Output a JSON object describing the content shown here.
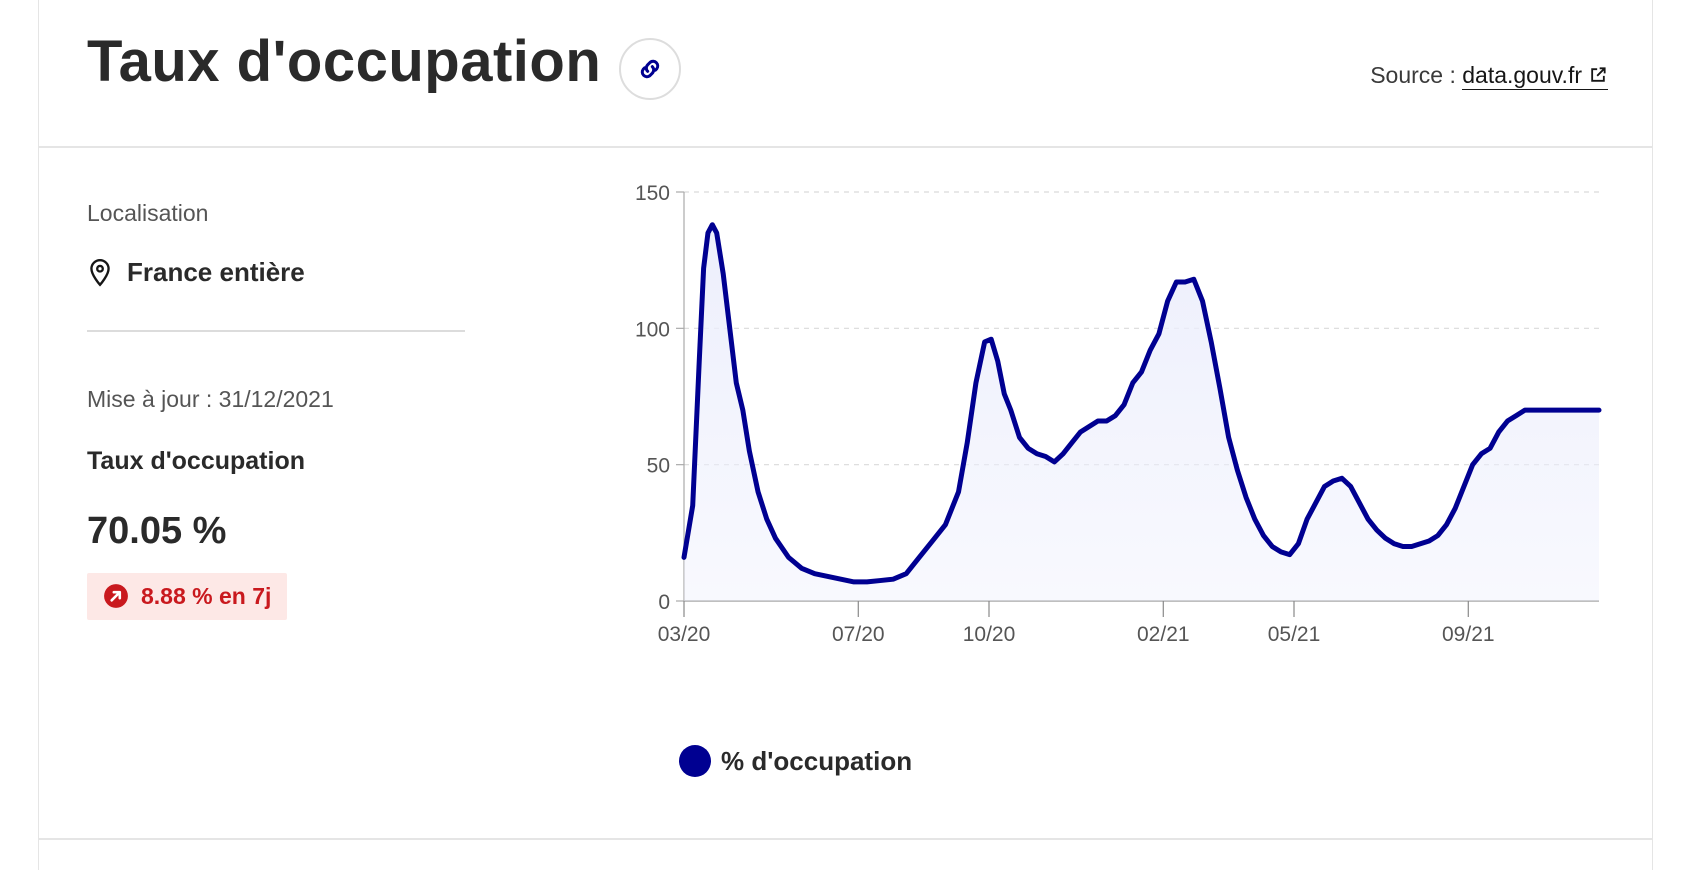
{
  "header": {
    "title": "Taux d'occupation",
    "source_prefix": "Source :",
    "source_link": "data.gouv.fr"
  },
  "sidebar": {
    "location_label": "Localisation",
    "location_value": "France entière",
    "update_text": "Mise à jour : 31/12/2021",
    "indicator_title": "Taux d'occupation",
    "indicator_value": "70.05 %",
    "trend_text": "8.88 % en 7j"
  },
  "colors": {
    "series": "#000091",
    "fill": "#eceefc",
    "trend": "#c9191e"
  },
  "chart_data": {
    "type": "area",
    "x_ticks": [
      "03/20",
      "07/20",
      "10/20",
      "02/21",
      "05/21",
      "09/21"
    ],
    "x_tick_values": [
      0,
      4,
      7,
      11,
      14,
      18
    ],
    "y_ticks": [
      0,
      50,
      100,
      150
    ],
    "ylim": [
      0,
      150
    ],
    "grid": true,
    "legend": "bottom",
    "series": [
      {
        "name": "% d'occupation",
        "x": [
          0,
          0.2,
          0.35,
          0.45,
          0.55,
          0.65,
          0.75,
          0.9,
          1.05,
          1.2,
          1.35,
          1.5,
          1.7,
          1.9,
          2.1,
          2.4,
          2.7,
          3.0,
          3.3,
          3.6,
          3.9,
          4.2,
          4.5,
          4.8,
          5.1,
          5.4,
          5.7,
          6.0,
          6.3,
          6.5,
          6.7,
          6.9,
          7.05,
          7.2,
          7.35,
          7.5,
          7.7,
          7.9,
          8.1,
          8.3,
          8.5,
          8.7,
          8.9,
          9.1,
          9.3,
          9.5,
          9.7,
          9.9,
          10.1,
          10.3,
          10.5,
          10.7,
          10.9,
          11.1,
          11.3,
          11.5,
          11.7,
          11.9,
          12.1,
          12.3,
          12.5,
          12.7,
          12.9,
          13.1,
          13.3,
          13.5,
          13.7,
          13.9,
          14.1,
          14.3,
          14.5,
          14.7,
          14.9,
          15.1,
          15.3,
          15.5,
          15.7,
          15.9,
          16.1,
          16.3,
          16.5,
          16.7,
          16.9,
          17.1,
          17.3,
          17.5,
          17.7,
          17.9,
          18.1,
          18.3,
          18.5,
          18.7,
          18.9,
          19.1,
          19.3,
          19.5,
          19.7,
          19.9,
          20.1,
          20.3,
          20.5,
          20.7,
          20.85,
          21.0
        ],
        "y": [
          16,
          35,
          88,
          122,
          135,
          138,
          135,
          120,
          100,
          80,
          70,
          55,
          40,
          30,
          23,
          16,
          12,
          10,
          9,
          8,
          7,
          7,
          7.5,
          8,
          10,
          16,
          22,
          28,
          40,
          58,
          80,
          95,
          96,
          88,
          76,
          70,
          60,
          56,
          54,
          53,
          51,
          54,
          58,
          62,
          64,
          66,
          66,
          68,
          72,
          80,
          84,
          92,
          98,
          110,
          117,
          117,
          118,
          110,
          95,
          78,
          60,
          48,
          38,
          30,
          24,
          20,
          18,
          17,
          21,
          30,
          36,
          42,
          44,
          45,
          42,
          36,
          30,
          26,
          23,
          21,
          20,
          20,
          21,
          22,
          24,
          28,
          34,
          42,
          50,
          54,
          56,
          62,
          66,
          68,
          70,
          70,
          70,
          70,
          70,
          70,
          70,
          70,
          70,
          70
        ]
      }
    ]
  }
}
